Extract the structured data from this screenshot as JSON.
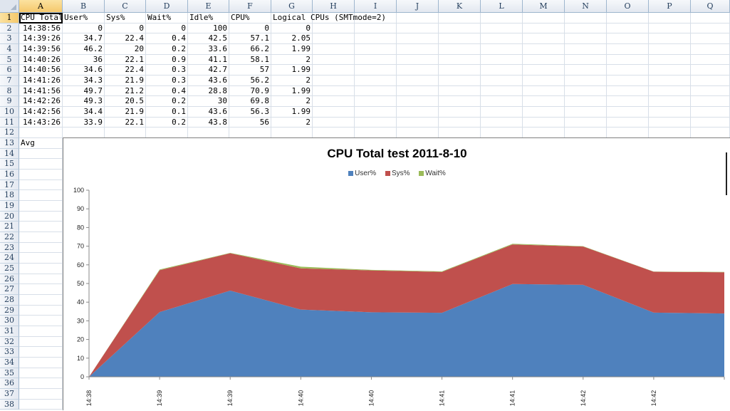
{
  "columns": [
    "A",
    "B",
    "C",
    "D",
    "E",
    "F",
    "G",
    "H",
    "I",
    "J",
    "K",
    "L",
    "M",
    "N",
    "O",
    "P",
    "Q"
  ],
  "rows": [
    "1",
    "2",
    "3",
    "4",
    "5",
    "6",
    "7",
    "8",
    "9",
    "10",
    "11",
    "12",
    "13",
    "14",
    "15",
    "16",
    "17",
    "18",
    "19",
    "20",
    "21",
    "22",
    "23",
    "24",
    "25",
    "26",
    "27",
    "28",
    "29",
    "30",
    "31",
    "32",
    "33",
    "34",
    "35",
    "36",
    "37",
    "38"
  ],
  "selected_cell": "A1",
  "header_cells": [
    "CPU Total",
    "User%",
    "Sys%",
    "Wait%",
    "Idle%",
    "CPU%",
    "Logical CPUs (SMTmode=2)"
  ],
  "table_rows": [
    [
      "14:38:56",
      "0",
      "0",
      "0",
      "100",
      "0",
      "0"
    ],
    [
      "14:39:26",
      "34.7",
      "22.4",
      "0.4",
      "42.5",
      "57.1",
      "2.05"
    ],
    [
      "14:39:56",
      "46.2",
      "20",
      "0.2",
      "33.6",
      "66.2",
      "1.99"
    ],
    [
      "14:40:26",
      "36",
      "22.1",
      "0.9",
      "41.1",
      "58.1",
      "2"
    ],
    [
      "14:40:56",
      "34.6",
      "22.4",
      "0.3",
      "42.7",
      "57",
      "1.99"
    ],
    [
      "14:41:26",
      "34.3",
      "21.9",
      "0.3",
      "43.6",
      "56.2",
      "2"
    ],
    [
      "14:41:56",
      "49.7",
      "21.2",
      "0.4",
      "28.8",
      "70.9",
      "1.99"
    ],
    [
      "14:42:26",
      "49.3",
      "20.5",
      "0.2",
      "30",
      "69.8",
      "2"
    ],
    [
      "14:42:56",
      "34.4",
      "21.9",
      "0.1",
      "43.6",
      "56.3",
      "1.99"
    ],
    [
      "14:43:26",
      "33.9",
      "22.1",
      "0.2",
      "43.8",
      "56",
      "2"
    ]
  ],
  "avg_label": "Avg",
  "chart_data": {
    "type": "area",
    "stacked": true,
    "title": "CPU Total test  2011-8-10",
    "categories": [
      "14:38",
      "14:39",
      "14:39",
      "14:40",
      "14:40",
      "14:41",
      "14:41",
      "14:42",
      "14:42",
      ""
    ],
    "series": [
      {
        "name": "User%",
        "color": "#4f81bd",
        "values": [
          0,
          34.7,
          46.2,
          36,
          34.6,
          34.3,
          49.7,
          49.3,
          34.4,
          33.9
        ]
      },
      {
        "name": "Sys%",
        "color": "#c0504d",
        "values": [
          0,
          22.4,
          20,
          22.1,
          22.4,
          21.9,
          21.2,
          20.5,
          21.9,
          22.1
        ]
      },
      {
        "name": "Wait%",
        "color": "#9bbb59",
        "values": [
          0,
          0.4,
          0.2,
          0.9,
          0.3,
          0.3,
          0.4,
          0.2,
          0.1,
          0.2
        ]
      }
    ],
    "ylim": [
      0,
      100
    ],
    "yticks": [
      "0",
      "10",
      "20",
      "30",
      "40",
      "50",
      "60",
      "70",
      "80",
      "90",
      "100"
    ],
    "legend_position": "top",
    "grid": false
  }
}
